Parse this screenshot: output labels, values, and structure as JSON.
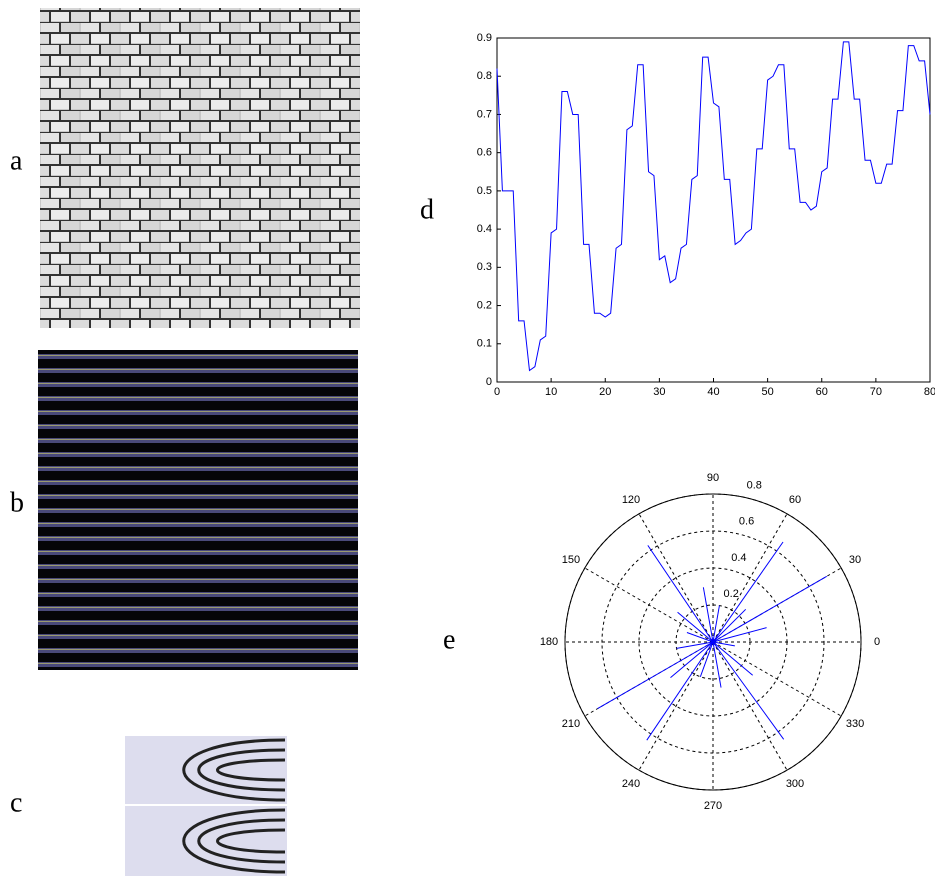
{
  "panel_labels": [
    "a",
    "b",
    "c",
    "d",
    "e"
  ],
  "chart_data": [
    {
      "type": "line",
      "x": [
        0,
        1,
        2,
        3,
        4,
        5,
        6,
        7,
        8,
        9,
        10,
        11,
        12,
        13,
        14,
        15,
        16,
        17,
        18,
        19,
        20,
        21,
        22,
        23,
        24,
        25,
        26,
        27,
        28,
        29,
        30,
        31,
        32,
        33,
        34,
        35,
        36,
        37,
        38,
        39,
        40,
        41,
        42,
        43,
        44,
        45,
        46,
        47,
        48,
        49,
        50,
        51,
        52,
        53,
        54,
        55,
        56,
        57,
        58,
        59,
        60,
        61,
        62,
        63,
        64,
        65,
        66,
        67,
        68,
        69,
        70,
        71,
        72,
        73,
        74,
        75,
        76,
        77,
        78,
        79,
        80
      ],
      "series": [
        {
          "color": "#0000ff",
          "values": [
            0.82,
            0.5,
            0.5,
            0.5,
            0.16,
            0.16,
            0.03,
            0.04,
            0.11,
            0.12,
            0.39,
            0.4,
            0.76,
            0.76,
            0.7,
            0.7,
            0.36,
            0.36,
            0.18,
            0.18,
            0.17,
            0.18,
            0.35,
            0.36,
            0.66,
            0.67,
            0.83,
            0.83,
            0.55,
            0.54,
            0.32,
            0.33,
            0.26,
            0.27,
            0.35,
            0.36,
            0.53,
            0.54,
            0.85,
            0.85,
            0.73,
            0.72,
            0.53,
            0.53,
            0.36,
            0.37,
            0.39,
            0.4,
            0.61,
            0.61,
            0.79,
            0.8,
            0.83,
            0.83,
            0.61,
            0.61,
            0.47,
            0.47,
            0.45,
            0.46,
            0.55,
            0.56,
            0.74,
            0.74,
            0.89,
            0.89,
            0.74,
            0.74,
            0.58,
            0.58,
            0.52,
            0.52,
            0.57,
            0.57,
            0.71,
            0.71,
            0.88,
            0.88,
            0.84,
            0.84,
            0.7
          ]
        }
      ],
      "xlim": [
        0,
        80
      ],
      "ylim": [
        0,
        0.9
      ],
      "xticks": [
        0,
        10,
        20,
        30,
        40,
        50,
        60,
        70,
        80
      ],
      "yticks": [
        0,
        0.1,
        0.2,
        0.3,
        0.4,
        0.5,
        0.6,
        0.7,
        0.8,
        0.9
      ]
    },
    {
      "type": "polar",
      "theta": [
        30,
        210,
        55,
        124,
        236,
        306,
        15,
        45,
        80,
        100,
        140,
        160,
        190,
        220,
        250,
        280,
        320,
        350
      ],
      "r": [
        0.71,
        0.72,
        0.66,
        0.63,
        0.64,
        0.65,
        0.3,
        0.25,
        0.2,
        0.3,
        0.25,
        0.15,
        0.2,
        0.3,
        0.2,
        0.25,
        0.28,
        0.12
      ],
      "color": "#0000ff",
      "rlim": [
        0,
        0.8
      ],
      "rticks": [
        0.2,
        0.4,
        0.6,
        0.8
      ],
      "thetaticks": [
        0,
        30,
        60,
        90,
        120,
        150,
        180,
        210,
        240,
        270,
        300,
        330
      ]
    }
  ]
}
